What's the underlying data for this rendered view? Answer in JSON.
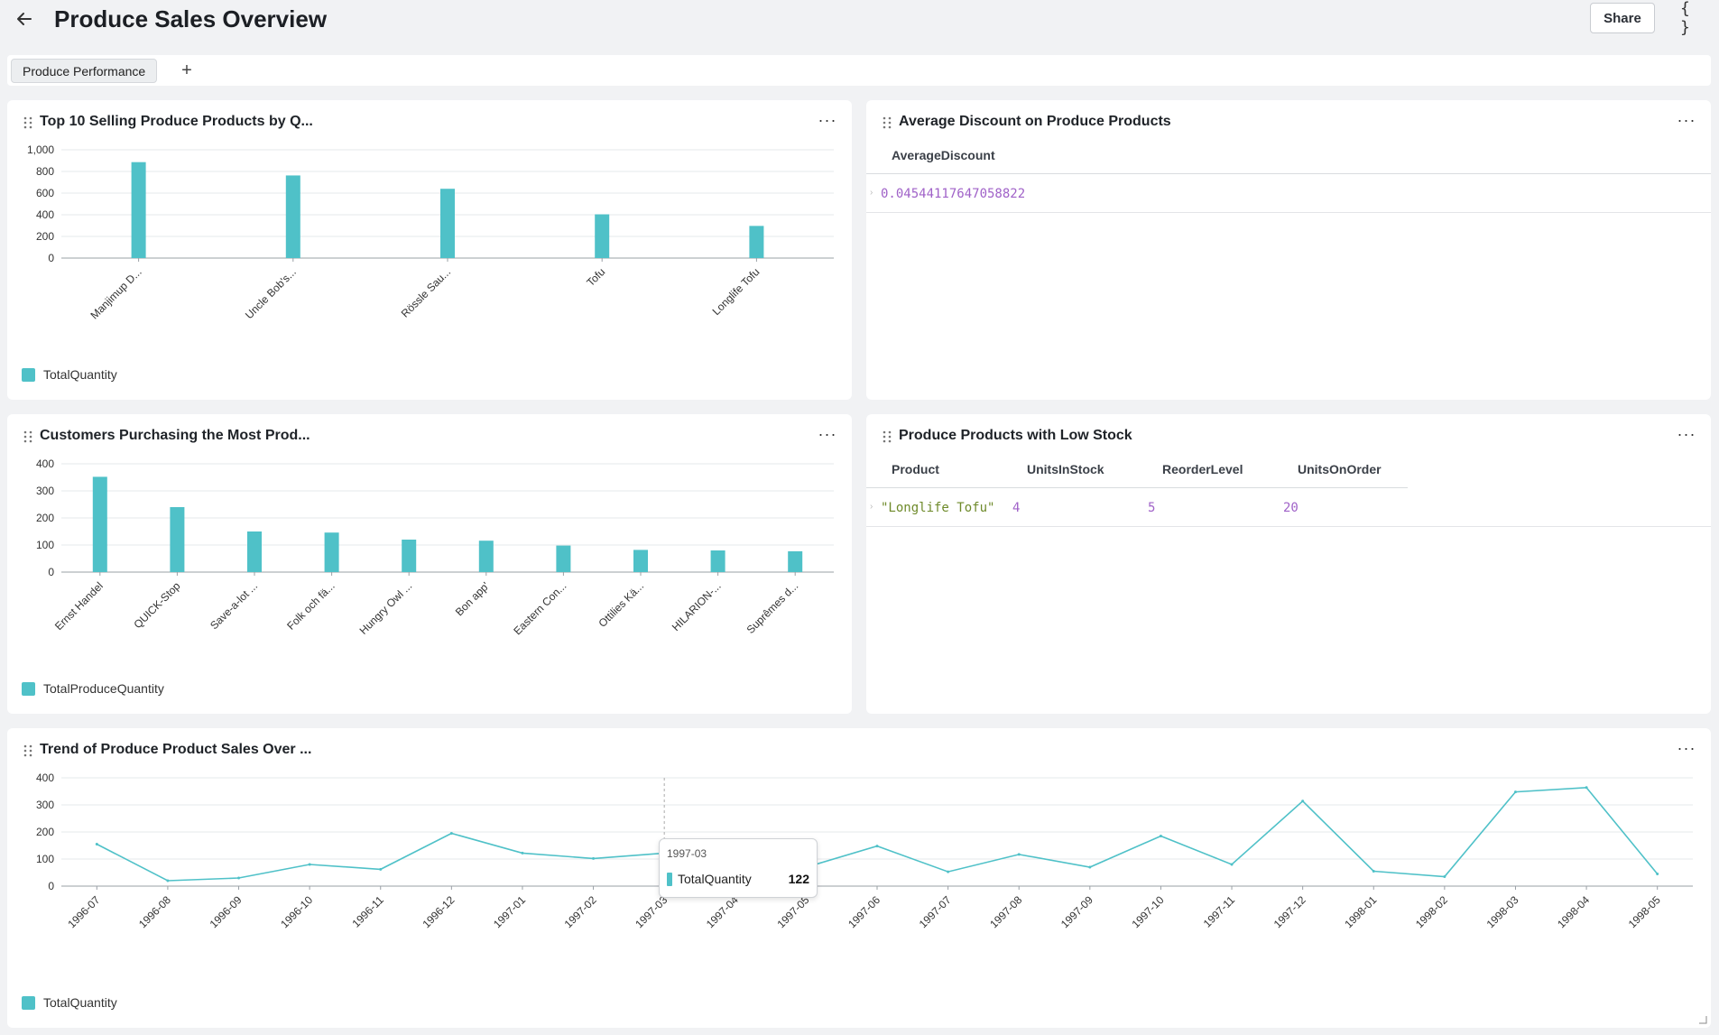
{
  "header": {
    "title": "Produce Sales Overview",
    "share_label": "Share",
    "json_label": "{ }"
  },
  "tabs": {
    "active_label": "Produce Performance",
    "add_label": "+"
  },
  "panels": {
    "top_products": {
      "title": "Top 10 Selling Produce Products by Q...",
      "legend": "TotalQuantity"
    },
    "avg_discount": {
      "title": "Average Discount on Produce Products",
      "columns": [
        "AverageDiscount"
      ],
      "rows": [
        [
          "0.04544117647058822"
        ]
      ]
    },
    "customers": {
      "title": "Customers Purchasing the Most Prod...",
      "legend": "TotalProduceQuantity"
    },
    "low_stock": {
      "title": "Produce Products with Low Stock",
      "columns": [
        "Product",
        "UnitsInStock",
        "ReorderLevel",
        "UnitsOnOrder"
      ],
      "rows": [
        [
          "\"Longlife Tofu\"",
          "4",
          "5",
          "20"
        ]
      ]
    },
    "trend": {
      "title": "Trend of Produce Product Sales Over ...",
      "legend": "TotalQuantity",
      "tooltip": {
        "period": "1997-03",
        "label": "TotalQuantity",
        "value": "122"
      }
    }
  },
  "colors": {
    "series": "#4fc1c8",
    "grid": "#e6e8eb",
    "axis": "#9aa0a6"
  },
  "chart_data": [
    {
      "type": "bar",
      "title": "Top 10 Selling Produce Products by Q...",
      "categories": [
        "Manjimup D...",
        "Uncle Bob's...",
        "Rössle Sau...",
        "Tofu",
        "Longlife Tofu"
      ],
      "series": [
        {
          "name": "TotalQuantity",
          "values": [
            886,
            763,
            640,
            404,
            297
          ]
        }
      ],
      "ylim": [
        0,
        1000
      ],
      "yticks": [
        0,
        200,
        400,
        600,
        800,
        1000
      ],
      "ytick_labels": [
        "0",
        "200",
        "400",
        "600",
        "800",
        "1,000"
      ]
    },
    {
      "type": "bar",
      "title": "Customers Purchasing the Most Prod...",
      "categories": [
        "Ernst Handel",
        "QUICK-Stop",
        "Save-a-lot ...",
        "Folk och fä...",
        "Hungry Owl ...",
        "Bon app'",
        "Eastern Con...",
        "Ottilies Kä...",
        "HILARION-...",
        "Suprêmes d..."
      ],
      "series": [
        {
          "name": "TotalProduceQuantity",
          "values": [
            352,
            240,
            150,
            146,
            120,
            116,
            98,
            82,
            80,
            77
          ]
        }
      ],
      "ylim": [
        0,
        400
      ],
      "yticks": [
        0,
        100,
        200,
        300,
        400
      ],
      "ytick_labels": [
        "0",
        "100",
        "200",
        "300",
        "400"
      ]
    },
    {
      "type": "line",
      "title": "Trend of Produce Product Sales Over ...",
      "x": [
        "1996-07",
        "1996-08",
        "1996-09",
        "1996-10",
        "1996-11",
        "1996-12",
        "1997-01",
        "1997-02",
        "1997-03",
        "1997-04",
        "1997-05",
        "1997-06",
        "1997-07",
        "1997-08",
        "1997-09",
        "1997-10",
        "1997-11",
        "1997-12",
        "1998-01",
        "1998-02",
        "1998-03",
        "1998-04",
        "1998-05"
      ],
      "series": [
        {
          "name": "TotalQuantity",
          "values": [
            155,
            20,
            30,
            80,
            62,
            195,
            122,
            102,
            122,
            112,
            70,
            148,
            53,
            117,
            70,
            185,
            80,
            314,
            55,
            35,
            348,
            364,
            45
          ]
        }
      ],
      "ylim": [
        0,
        400
      ],
      "yticks": [
        0,
        100,
        200,
        300,
        400
      ],
      "ytick_labels": [
        "0",
        "100",
        "200",
        "300",
        "400"
      ]
    }
  ]
}
